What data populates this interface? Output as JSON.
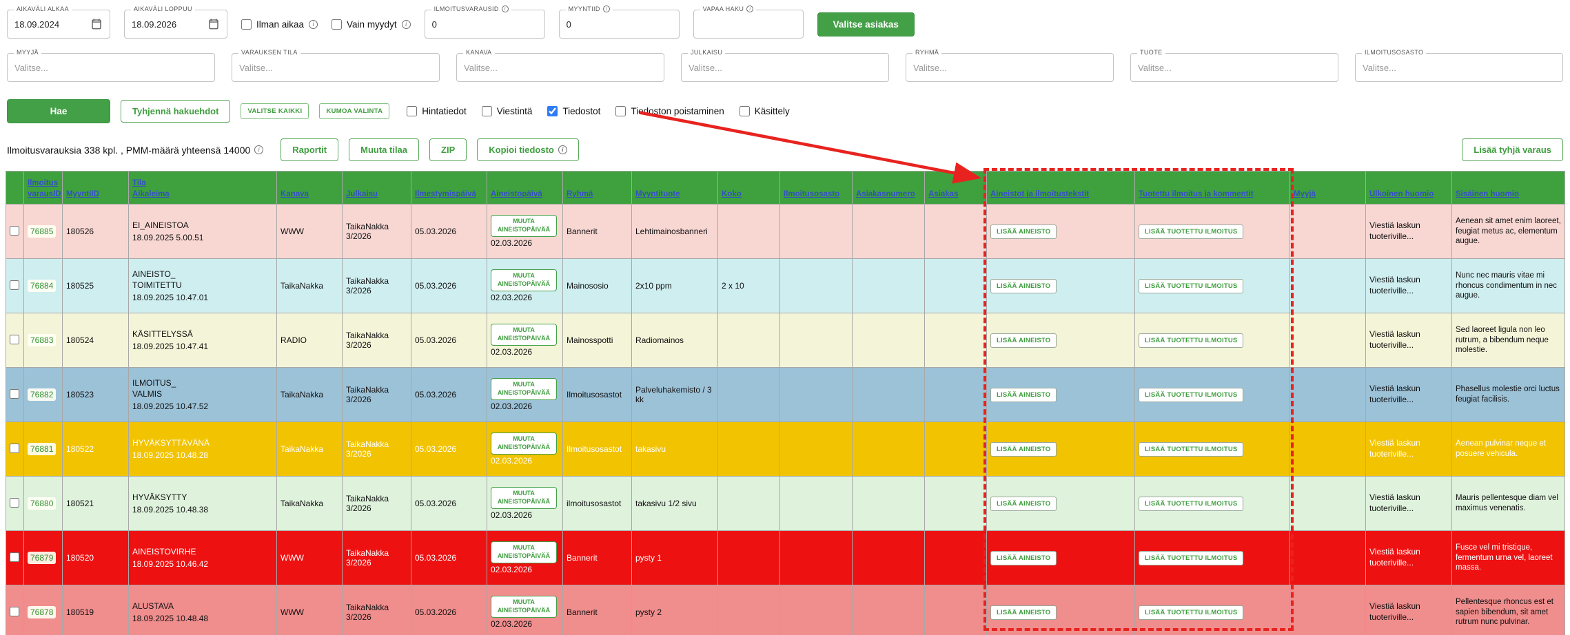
{
  "colors": {
    "accent_green": "#43a047",
    "header_green": "#3ea13e",
    "header_link_blue": "#3450c2",
    "annotation_red": "#e8231f",
    "checkbox_blue": "#2e7cf6"
  },
  "filters": {
    "date_start": {
      "label": "AIKAVÄLI ALKAA",
      "value": "18.09.2024"
    },
    "date_end": {
      "label": "AIKAVÄLI LOPPUU",
      "value": "18.09.2026"
    },
    "ilman_aikaa": {
      "label": "Ilman aikaa",
      "checked": false
    },
    "vain_myydyt": {
      "label": "Vain myydyt",
      "checked": false
    },
    "ilmoitusvarausid": {
      "label": "ILMOITUSVARAUSID",
      "value": "0"
    },
    "myyntiid": {
      "label": "MYYNTIID",
      "value": "0"
    },
    "vapaa_haku": {
      "label": "VAPAA HAKU",
      "value": ""
    },
    "valitse_asiakas_label": "Valitse asiakas",
    "selects": [
      {
        "label": "MYYJÄ",
        "placeholder": "Valitse..."
      },
      {
        "label": "VARAUKSEN TILA",
        "placeholder": "Valitse..."
      },
      {
        "label": "KANAVA",
        "placeholder": "Valitse..."
      },
      {
        "label": "JULKAISU",
        "placeholder": "Valitse..."
      },
      {
        "label": "RYHMÄ",
        "placeholder": "Valitse..."
      },
      {
        "label": "TUOTE",
        "placeholder": "Valitse..."
      },
      {
        "label": "ILMOITUSOSASTO",
        "placeholder": "Valitse..."
      }
    ]
  },
  "actions": {
    "hae": "Hae",
    "tyhjenna": "Tyhjennä hakuehdot",
    "valitse_kaikki": "VALITSE KAIKKI",
    "kumoa_valinta": "KUMOA VALINTA",
    "checkboxes": [
      {
        "label": "Hintatiedot",
        "checked": false
      },
      {
        "label": "Viestintä",
        "checked": false
      },
      {
        "label": "Tiedostot",
        "checked": true
      },
      {
        "label": "Tiedoston poistaminen",
        "checked": false
      },
      {
        "label": "Käsittely",
        "checked": false
      }
    ]
  },
  "summary": {
    "count_text": "Ilmoitusvarauksia 338 kpl. , PMM-määrä yhteensä 14000",
    "raportit": "Raportit",
    "muuta_tilaa": "Muuta tilaa",
    "zip": "ZIP",
    "kopioi_tiedosto": "Kopioi tiedosto",
    "lisaa_tyhja_varaus": "Lisää tyhjä varaus"
  },
  "table": {
    "headers": [
      "",
      "Ilmoitus\nvarausID",
      "MyyntiID",
      "Tila\nAikaleima",
      "Kanava",
      "Julkaisu",
      "Ilmestymispäivä",
      "Aineistopäivä",
      "Ryhmä",
      "Myyntituote",
      "Koko",
      "Ilmoitusosasto",
      "Asiakasnumero",
      "Asiakas",
      "Aineistot ja ilmoitustekstit",
      "Tuotettu ilmoitus ja kommentit",
      "Myyjä",
      "Ulkoinen huomio",
      "Sisäinen huomio"
    ],
    "muuta_aineistopaiva": "MUUTA AINEISTOPÄIVÄÄ",
    "lisaa_aineisto": "LISÄÄ AINEISTO",
    "lisaa_tuotettu_ilmoitus": "LISÄÄ TUOTETTU ILMOITUS",
    "rows": [
      {
        "id": "76885",
        "myyntiid": "180526",
        "tila": "EI_AINEISTOA",
        "aikaleima": "18.09.2025 5.00.51",
        "kanava": "WWW",
        "julkaisu": "TaikaNakka 3/2026",
        "ilmestymispaiva": "05.03.2026",
        "aineistopaiva": "02.03.2026",
        "ryhma": "Bannerit",
        "myyntituote": "Lehtimainosbanneri",
        "koko": "",
        "ilmoitusosasto": "",
        "asiakasnumero": "",
        "asiakas": "",
        "myyja": "",
        "ulkoinen": "Viestiä laskun tuoteriville...",
        "sisainen": "Aenean sit amet enim laoreet, feugiat metus ac, elementum augue.",
        "bg": "#f8d7d3",
        "fg": "#111111"
      },
      {
        "id": "76884",
        "myyntiid": "180525",
        "tila": "AINEISTO_\nTOIMITETTU",
        "aikaleima": "18.09.2025 10.47.01",
        "kanava": "TaikaNakka",
        "julkaisu": "TaikaNakka 3/2026",
        "ilmestymispaiva": "05.03.2026",
        "aineistopaiva": "02.03.2026",
        "ryhma": "Mainososio",
        "myyntituote": "2x10 ppm",
        "koko": "2 x 10",
        "ilmoitusosasto": "",
        "asiakasnumero": "",
        "asiakas": "",
        "myyja": "",
        "ulkoinen": "Viestiä laskun tuoteriville...",
        "sisainen": "Nunc nec mauris vitae mi rhoncus condimentum in nec augue.",
        "bg": "#cfeef0",
        "fg": "#111111"
      },
      {
        "id": "76883",
        "myyntiid": "180524",
        "tila": "KÄSITTELYSSÄ",
        "aikaleima": "18.09.2025 10.47.41",
        "kanava": "RADIO",
        "julkaisu": "TaikaNakka 3/2026",
        "ilmestymispaiva": "05.03.2026",
        "aineistopaiva": "02.03.2026",
        "ryhma": "Mainosspotti",
        "myyntituote": "Radiomainos",
        "koko": "",
        "ilmoitusosasto": "",
        "asiakasnumero": "",
        "asiakas": "",
        "myyja": "",
        "ulkoinen": "Viestiä laskun tuoteriville...",
        "sisainen": "Sed laoreet ligula non leo rutrum, a bibendum neque molestie.",
        "bg": "#f4f4d8",
        "fg": "#111111"
      },
      {
        "id": "76882",
        "myyntiid": "180523",
        "tila": "ILMOITUS_\nVALMIS",
        "aikaleima": "18.09.2025 10.47.52",
        "kanava": "TaikaNakka",
        "julkaisu": "TaikaNakka 3/2026",
        "ilmestymispaiva": "05.03.2026",
        "aineistopaiva": "02.03.2026",
        "ryhma": "Ilmoitusosastot",
        "myyntituote": "Palveluhakemisto / 3 kk",
        "koko": "",
        "ilmoitusosasto": "",
        "asiakasnumero": "",
        "asiakas": "",
        "myyja": "",
        "ulkoinen": "Viestiä laskun tuoteriville...",
        "sisainen": "Phasellus molestie orci luctus feugiat facilisis.",
        "bg": "#9cc2d8",
        "fg": "#111111"
      },
      {
        "id": "76881",
        "myyntiid": "180522",
        "tila": "HYVÄKSYTTÄVÄNÄ",
        "aikaleima": "18.09.2025 10.48.28",
        "kanava": "TaikaNakka",
        "julkaisu": "TaikaNakka 3/2026",
        "ilmestymispaiva": "05.03.2026",
        "aineistopaiva": "02.03.2026",
        "ryhma": "Ilmoitusosastot",
        "myyntituote": "takasivu",
        "koko": "",
        "ilmoitusosasto": "",
        "asiakasnumero": "",
        "asiakas": "",
        "myyja": "",
        "ulkoinen": "Viestiä laskun tuoteriville...",
        "sisainen": "Aenean pulvinar neque et posuere vehicula.",
        "bg": "#f2c300",
        "fg": "#ffffff"
      },
      {
        "id": "76880",
        "myyntiid": "180521",
        "tila": "HYVÄKSYTTY",
        "aikaleima": "18.09.2025 10.48.38",
        "kanava": "TaikaNakka",
        "julkaisu": "TaikaNakka 3/2026",
        "ilmestymispaiva": "05.03.2026",
        "aineistopaiva": "02.03.2026",
        "ryhma": "ilmoitusosastot",
        "myyntituote": "takasivu 1/2 sivu",
        "koko": "",
        "ilmoitusosasto": "",
        "asiakasnumero": "",
        "asiakas": "",
        "myyja": "",
        "ulkoinen": "Viestiä laskun tuoteriville...",
        "sisainen": "Mauris pellentesque diam vel maximus venenatis.",
        "bg": "#def2dc",
        "fg": "#111111"
      },
      {
        "id": "76879",
        "myyntiid": "180520",
        "tila": "AINEISTOVIRHE",
        "aikaleima": "18.09.2025 10.46.42",
        "kanava": "WWW",
        "julkaisu": "TaikaNakka 3/2026",
        "ilmestymispaiva": "05.03.2026",
        "aineistopaiva": "02.03.2026",
        "ryhma": "Bannerit",
        "myyntituote": "pysty 1",
        "koko": "",
        "ilmoitusosasto": "",
        "asiakasnumero": "",
        "asiakas": "",
        "myyja": "",
        "ulkoinen": "Viestiä laskun tuoteriville...",
        "sisainen": "Fusce vel mi tristique, fermentum urna vel, laoreet massa.",
        "bg": "#ee1111",
        "fg": "#ffffff"
      },
      {
        "id": "76878",
        "myyntiid": "180519",
        "tila": "ALUSTAVA",
        "aikaleima": "18.09.2025 10.48.48",
        "kanava": "WWW",
        "julkaisu": "TaikaNakka 3/2026",
        "ilmestymispaiva": "05.03.2026",
        "aineistopaiva": "02.03.2026",
        "ryhma": "Bannerit",
        "myyntituote": "pysty 2",
        "koko": "",
        "ilmoitusosasto": "",
        "asiakasnumero": "",
        "asiakas": "",
        "myyja": "",
        "ulkoinen": "Viestiä laskun tuoteriville...",
        "sisainen": "Pellentesque rhoncus est et sapien bibendum, sit amet rutrum nunc pulvinar.",
        "bg": "#f08d8d",
        "fg": "#111111"
      }
    ]
  },
  "annotation": {
    "color": "#e8231f",
    "highlighted_columns": [
      "Aineistot ja ilmoitustekstit",
      "Tuotettu ilmoitus ja kommentit"
    ]
  }
}
